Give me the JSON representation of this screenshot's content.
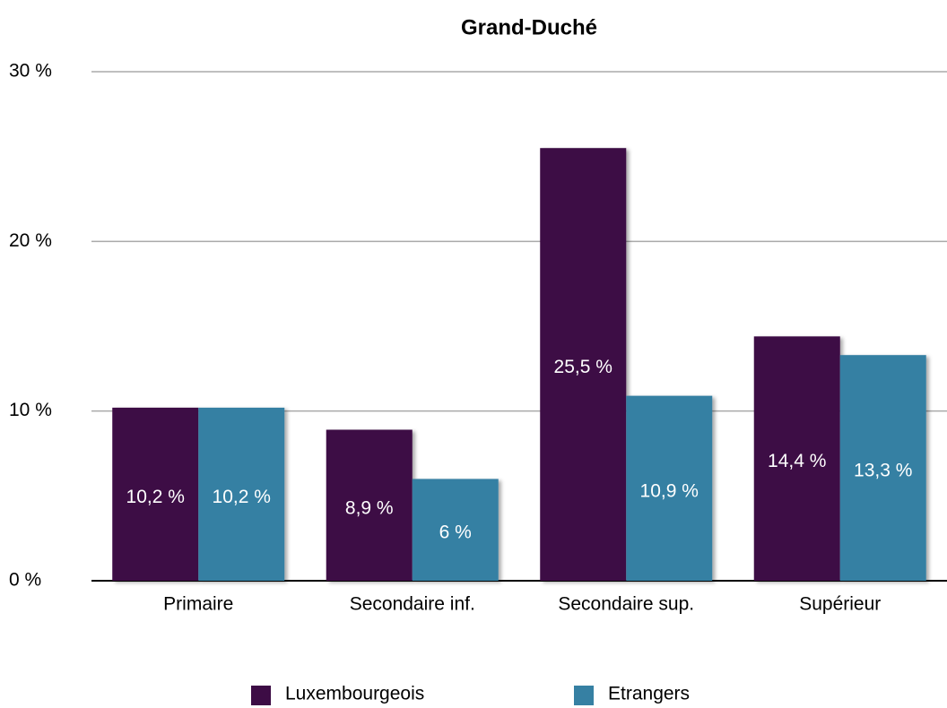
{
  "chart_data": {
    "type": "bar",
    "title": "Grand-Duché",
    "categories": [
      "Primaire",
      "Secondaire inf.",
      "Secondaire sup.",
      "Supérieur"
    ],
    "series": [
      {
        "name": "Luxembourgeois",
        "color": "#3d0c45",
        "values": [
          10.2,
          8.9,
          25.5,
          14.4
        ],
        "value_labels": [
          "10,2 %",
          "8,9 %",
          "25,5 %",
          "14,4 %"
        ]
      },
      {
        "name": "Etrangers",
        "color": "#3680a3",
        "values": [
          10.2,
          6,
          10.9,
          13.3
        ],
        "value_labels": [
          "10,2 %",
          "6 %",
          "10,9 %",
          "13,3 %"
        ]
      }
    ],
    "ylim": [
      0,
      30
    ],
    "yticks": [
      {
        "value": 0,
        "label": "0 %"
      },
      {
        "value": 10,
        "label": "10 %"
      },
      {
        "value": 20,
        "label": "20 %"
      },
      {
        "value": 30,
        "label": "30 %"
      }
    ],
    "grid": true
  }
}
